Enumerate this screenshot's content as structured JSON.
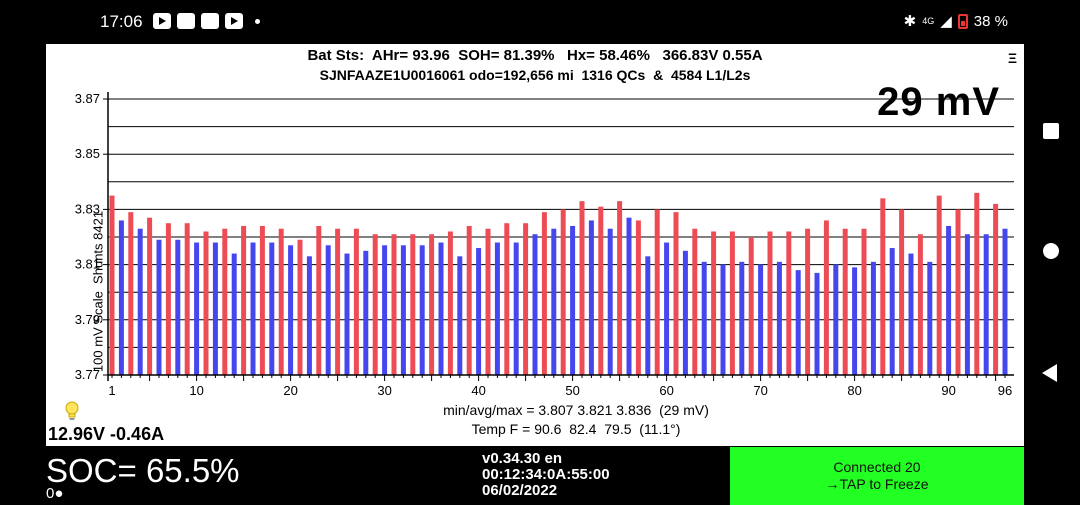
{
  "status_bar": {
    "time": "17:06",
    "battery": "38 %",
    "network": "4G"
  },
  "header": {
    "line1": "Bat Sts:  AHr= 93.96  SOH= 81.39%   Hx= 58.46%   366.83V 0.55A",
    "line2": "SJNFAAZE1U0016061 odo=192,656 mi  1316 QCs  &  4584 L1/L2s",
    "menu": "Ξ"
  },
  "spread": "29 mV",
  "y_axis_label": "100 mV Scale  Shunts 8421",
  "stats": {
    "minavgmax": "min/avg/max = 3.807 3.821 3.836  (29 mV)",
    "temp": "Temp F = 90.6  82.4  79.5  (11.1°)"
  },
  "aux_voltage": "12.96V -0.46A",
  "soc": "SOC= 65.5%",
  "soc_sub": "0●",
  "version": {
    "v": "v0.34.30 en",
    "time": "00:12:34:0A:55:00",
    "date": "06/02/2022"
  },
  "connection": {
    "status": "Connected 20",
    "action": "→TAP to Freeze"
  },
  "colors": {
    "odd": "#ee4c55",
    "even": "#4646ee",
    "connect_bg": "#22ff22"
  },
  "chart_data": {
    "type": "bar",
    "ylim": [
      3.77,
      3.87
    ],
    "y_ticks": [
      3.77,
      3.79,
      3.81,
      3.83,
      3.85,
      3.87
    ],
    "x_ticks": [
      1,
      10,
      20,
      30,
      40,
      50,
      60,
      70,
      80,
      90,
      96
    ],
    "x": [
      1,
      2,
      3,
      4,
      5,
      6,
      7,
      8,
      9,
      10,
      11,
      12,
      13,
      14,
      15,
      16,
      17,
      18,
      19,
      20,
      21,
      22,
      23,
      24,
      25,
      26,
      27,
      28,
      29,
      30,
      31,
      32,
      33,
      34,
      35,
      36,
      37,
      38,
      39,
      40,
      41,
      42,
      43,
      44,
      45,
      46,
      47,
      48,
      49,
      50,
      51,
      52,
      53,
      54,
      55,
      56,
      57,
      58,
      59,
      60,
      61,
      62,
      63,
      64,
      65,
      66,
      67,
      68,
      69,
      70,
      71,
      72,
      73,
      74,
      75,
      76,
      77,
      78,
      79,
      80,
      81,
      82,
      83,
      84,
      85,
      86,
      87,
      88,
      89,
      90,
      91,
      92,
      93,
      94,
      95,
      96
    ],
    "values": [
      3.835,
      3.826,
      3.829,
      3.823,
      3.827,
      3.819,
      3.825,
      3.819,
      3.825,
      3.818,
      3.822,
      3.818,
      3.823,
      3.814,
      3.824,
      3.818,
      3.824,
      3.818,
      3.823,
      3.817,
      3.819,
      3.813,
      3.824,
      3.817,
      3.823,
      3.814,
      3.823,
      3.815,
      3.821,
      3.817,
      3.821,
      3.817,
      3.821,
      3.817,
      3.821,
      3.818,
      3.822,
      3.813,
      3.824,
      3.816,
      3.823,
      3.818,
      3.825,
      3.818,
      3.825,
      3.821,
      3.829,
      3.823,
      3.83,
      3.824,
      3.833,
      3.826,
      3.831,
      3.823,
      3.833,
      3.827,
      3.826,
      3.813,
      3.83,
      3.818,
      3.829,
      3.815,
      3.823,
      3.811,
      3.822,
      3.81,
      3.822,
      3.811,
      3.82,
      3.81,
      3.822,
      3.811,
      3.822,
      3.808,
      3.823,
      3.807,
      3.826,
      3.81,
      3.823,
      3.809,
      3.823,
      3.811,
      3.834,
      3.816,
      3.83,
      3.814,
      3.821,
      3.811,
      3.835,
      3.824,
      3.83,
      3.821,
      3.836,
      3.821,
      3.832,
      3.823
    ]
  }
}
